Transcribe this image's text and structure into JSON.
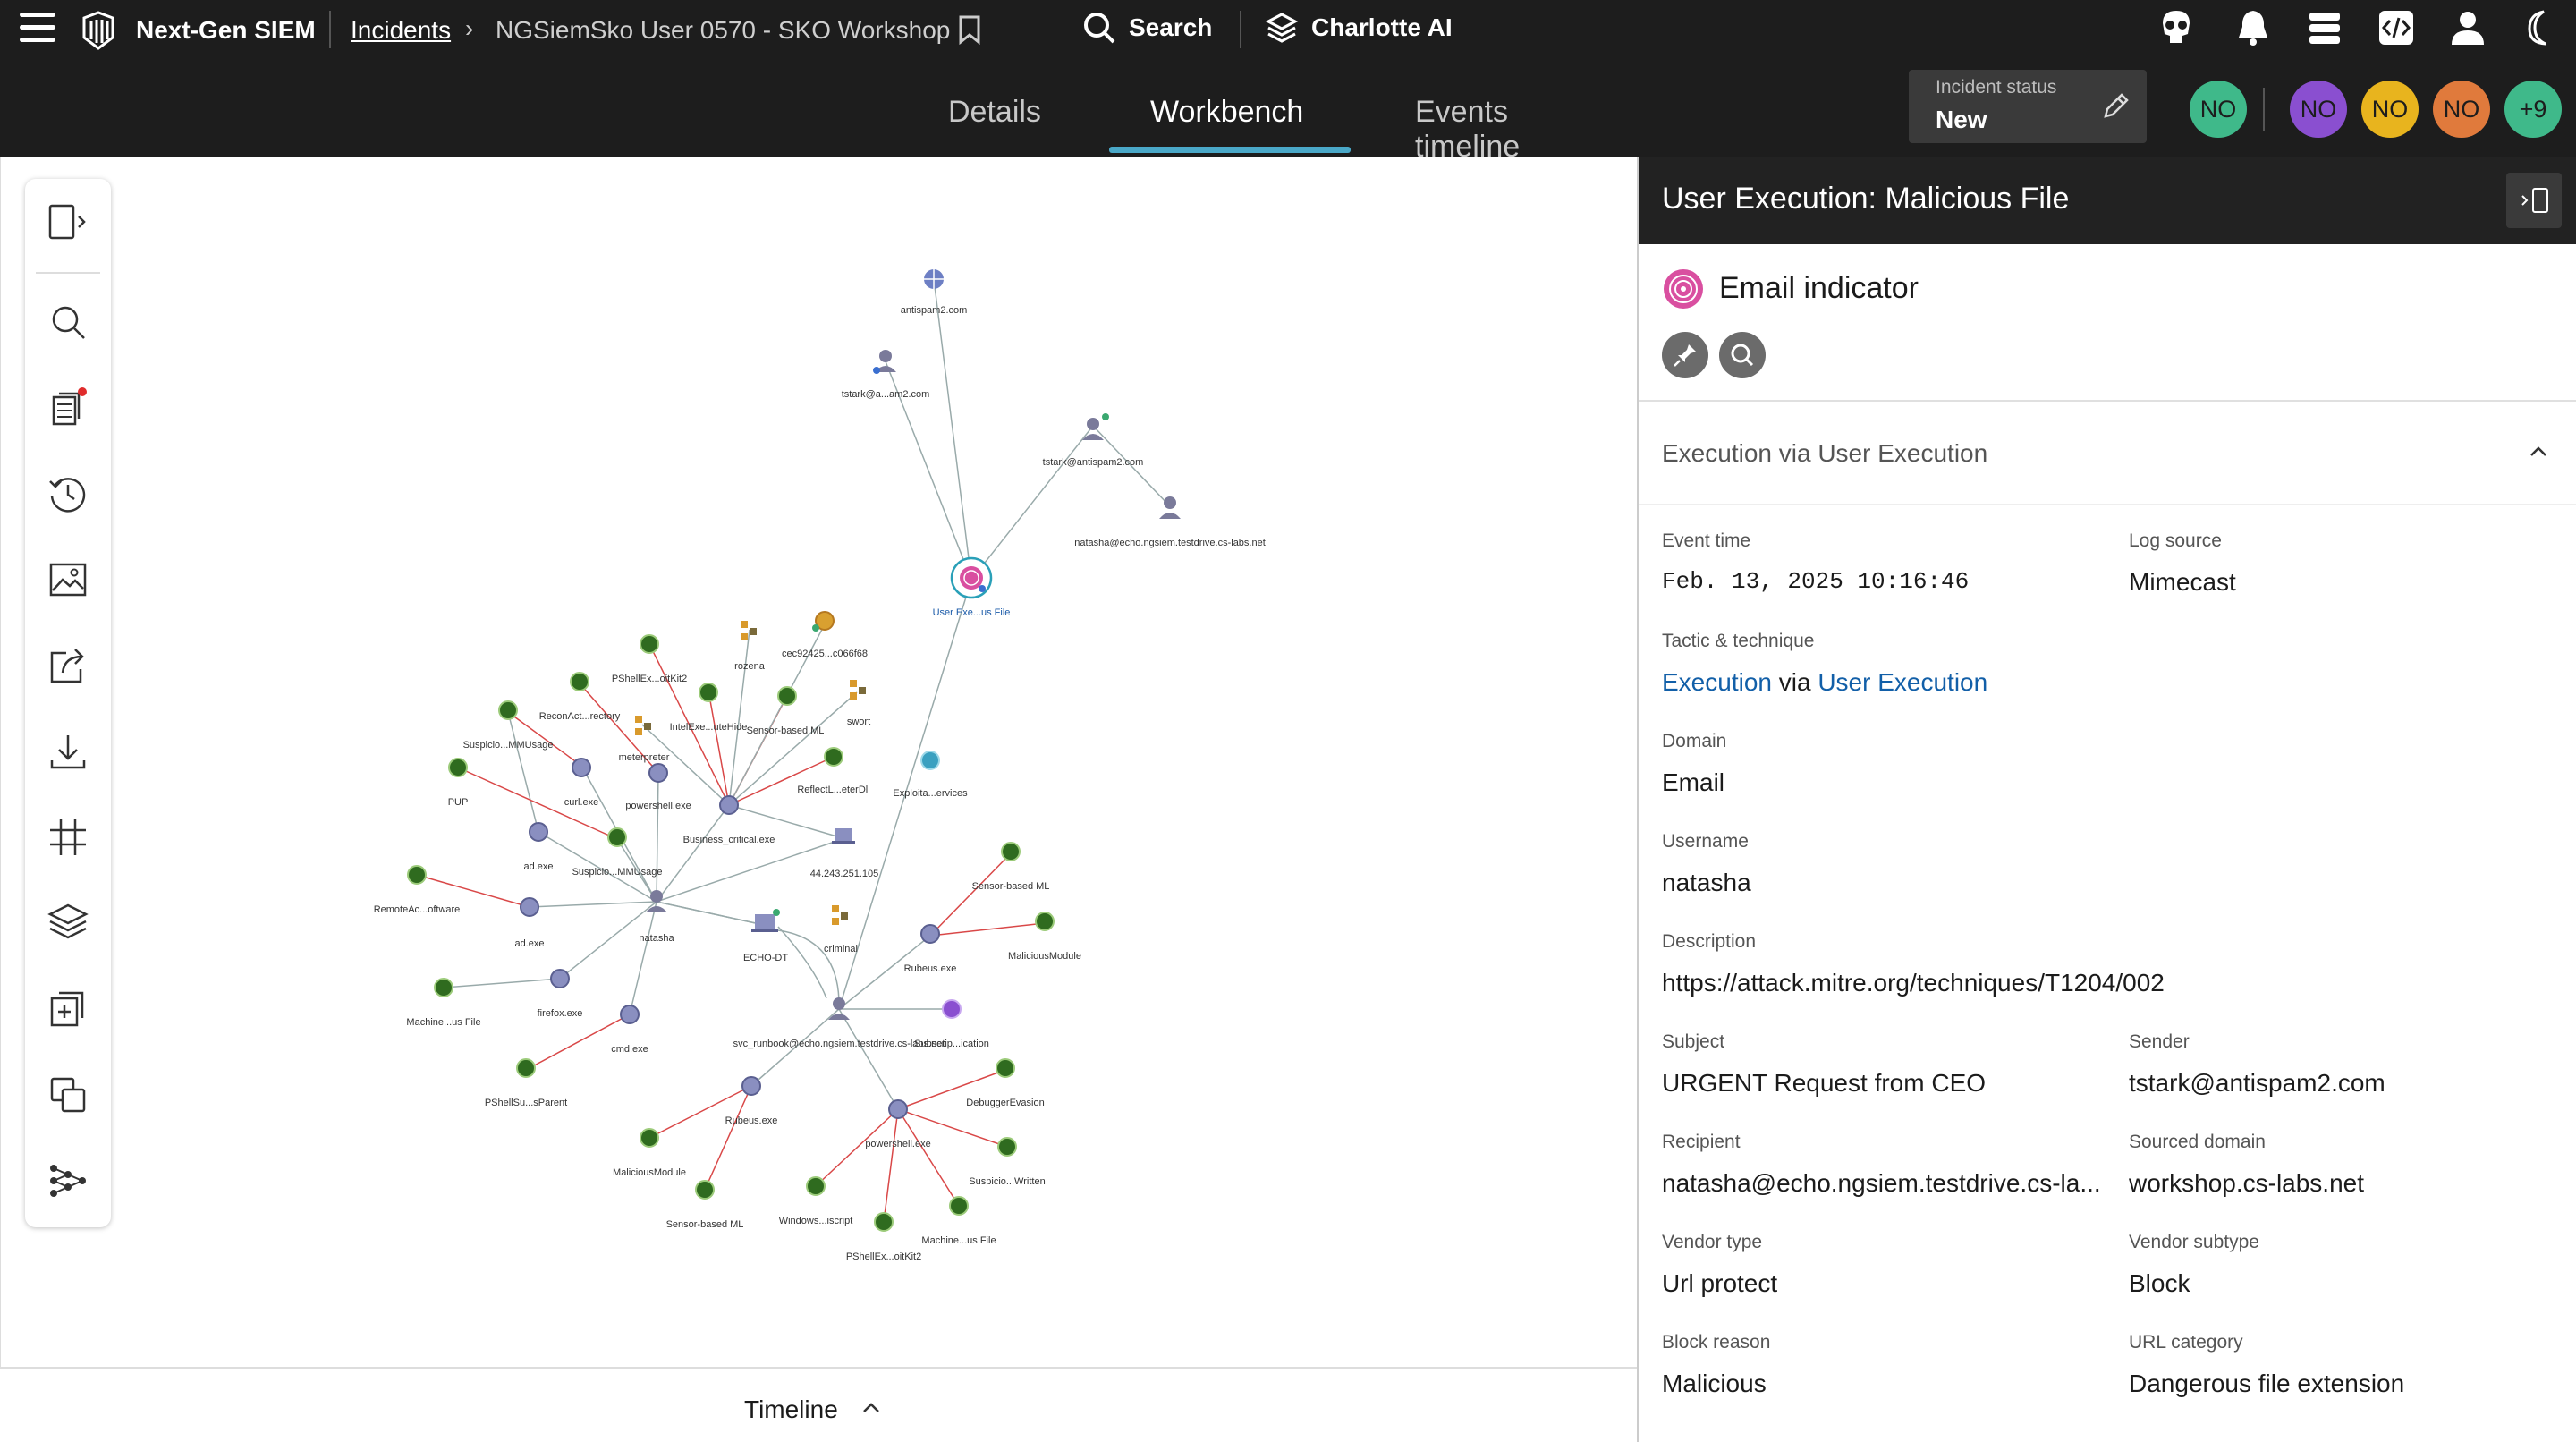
{
  "header": {
    "product": "Next-Gen SIEM",
    "breadcrumb_root": "Incidents",
    "breadcrumb_current": "NGSiemSko User 0570 - SKO Workshop",
    "search_label": "Search",
    "assistant_label": "Charlotte AI"
  },
  "tabs": [
    {
      "label": "Details"
    },
    {
      "label": "Workbench"
    },
    {
      "label": "Events timeline"
    }
  ],
  "incident_status": {
    "label": "Incident status",
    "value": "New"
  },
  "avatars": [
    {
      "initials": "NO",
      "color": "#3fb98a"
    },
    {
      "initials": "NO",
      "color": "#8a4fd0"
    },
    {
      "initials": "NO",
      "color": "#e8b41e"
    },
    {
      "initials": "NO",
      "color": "#e07a3c"
    },
    {
      "initials": "+9",
      "color": "#3fb98a"
    }
  ],
  "graph": {
    "labels": {
      "antispam": "antispam2.com",
      "tstark_short": "tstark@a...am2.com",
      "tstark_full": "tstark@antispam2.com",
      "natasha_email": "natasha@echo.ngsiem.testdrive.cs-labs.net",
      "user_exec": "User Exe...us File",
      "pshellex_top": "PShellEx...oitKit2",
      "rozena": "rozena",
      "cec": "cec92425...c066f68",
      "reconact": "ReconAct...rectory",
      "intelexe": "IntelExe...uteHide",
      "sensor_top": "Sensor-based ML",
      "swort": "swort",
      "meterpreter": "meterpreter",
      "suspicio_mmu1": "Suspicio...MMUsage",
      "curl": "curl.exe",
      "powershell_top": "powershell.exe",
      "reflectl": "ReflectL...eterDll",
      "exploita": "Exploita...ervices",
      "pup": "PUP",
      "ad_exe1": "ad.exe",
      "suspicio_mmu2": "Suspicio...MMUsage",
      "business": "Business_critical.exe",
      "ip": "44.243.251.105",
      "remoteac": "RemoteAc...oftware",
      "ad_exe2": "ad.exe",
      "natasha": "natasha",
      "echo": "ECHO-DT",
      "criminal": "criminal",
      "sensor_right": "Sensor-based ML",
      "malicious_right": "MaliciousModule",
      "rubeus_right": "Rubeus.exe",
      "machine_left": "Machine...us File",
      "firefox": "firefox.exe",
      "cmd": "cmd.exe",
      "svc": "svc_runbook@echo.ngsiem.testdrive.cs-labs.net",
      "subscrip": "Subscrip...ication",
      "pshellsu": "PShellSu...sParent",
      "rubeus_bottom": "Rubeus.exe",
      "debugger": "DebuggerEvasion",
      "malicious_bottom": "MaliciousModule",
      "powershell_bottom": "powershell.exe",
      "suspicio_written": "Suspicio...Written",
      "sensor_bottom": "Sensor-based ML",
      "windows": "Windows...iscript",
      "machine_bottom": "Machine...us File",
      "pshellex_bottom": "PShellEx...oitKit2"
    }
  },
  "timeline": {
    "label": "Timeline"
  },
  "panel": {
    "title": "User Execution: Malicious File",
    "indicator_title": "Email indicator",
    "section_title": "Execution via User Execution",
    "fields": {
      "event_time_label": "Event time",
      "event_time": "Feb. 13, 2025 10:16:46",
      "log_source_label": "Log source",
      "log_source": "Mimecast",
      "tactic_label": "Tactic & technique",
      "tactic": "Execution",
      "tactic_via": "via",
      "technique": "User Execution",
      "domain_label": "Domain",
      "domain": "Email",
      "username_label": "Username",
      "username": "natasha",
      "description_label": "Description",
      "description": "https://attack.mitre.org/techniques/T1204/002",
      "subject_label": "Subject",
      "subject": "URGENT Request from CEO",
      "sender_label": "Sender",
      "sender": "tstark@antispam2.com",
      "recipient_label": "Recipient",
      "recipient": "natasha@echo.ngsiem.testdrive.cs-la...",
      "sourced_domain_label": "Sourced domain",
      "sourced_domain": "workshop.cs-labs.net",
      "vendor_type_label": "Vendor type",
      "vendor_type": "Url protect",
      "vendor_subtype_label": "Vendor subtype",
      "vendor_subtype": "Block",
      "block_reason_label": "Block reason",
      "block_reason": "Malicious",
      "url_category_label": "URL category",
      "url_category": "Dangerous file extension"
    }
  },
  "colors": {
    "accent": "#4aa8c8",
    "link": "#125fa8",
    "header_bg": "#1d1d1d",
    "detection": "#2f6b1f",
    "edge_red": "#d94848"
  },
  "icons": {
    "menu": "hamburger-icon",
    "logo": "falcon-logo-icon",
    "bookmark": "bookmark-icon",
    "search": "search-icon",
    "charlotte": "charlotte-icon",
    "skull": "skull-icon",
    "bell": "bell-icon",
    "stack": "stack-icon",
    "code": "code-icon",
    "user": "user-icon",
    "moon": "moon-icon",
    "edit": "pencil-icon"
  }
}
